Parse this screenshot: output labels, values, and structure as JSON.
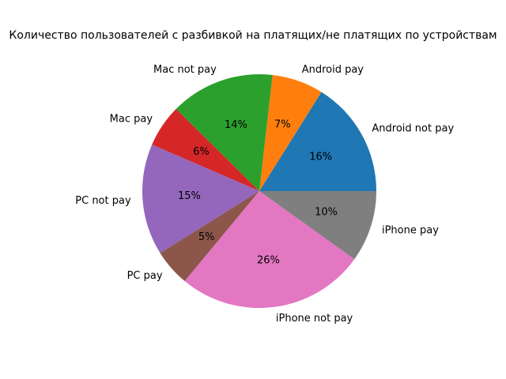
{
  "chart_data": {
    "type": "pie",
    "title": "Количество пользователей с разбивкой на платящих/не платящих по устройствам",
    "categories": [
      "Android not pay",
      "Android pay",
      "Mac not pay",
      "Mac pay",
      "PC not pay",
      "PC pay",
      "iPhone not pay",
      "iPhone pay"
    ],
    "values": [
      16.1,
      7.1,
      14.4,
      5.9,
      15.4,
      5.1,
      26.1,
      9.9
    ],
    "value_labels": [
      "16%",
      "7%",
      "14%",
      "6%",
      "15%",
      "5%",
      "26%",
      "10%"
    ],
    "colors": [
      "#1f77b4",
      "#ff7f0e",
      "#2ca02c",
      "#d62728",
      "#9467bd",
      "#8c564b",
      "#e377c2",
      "#7f7f7f"
    ],
    "start_angle_deg": 0,
    "direction": "counterclockwise",
    "legend": "none"
  }
}
